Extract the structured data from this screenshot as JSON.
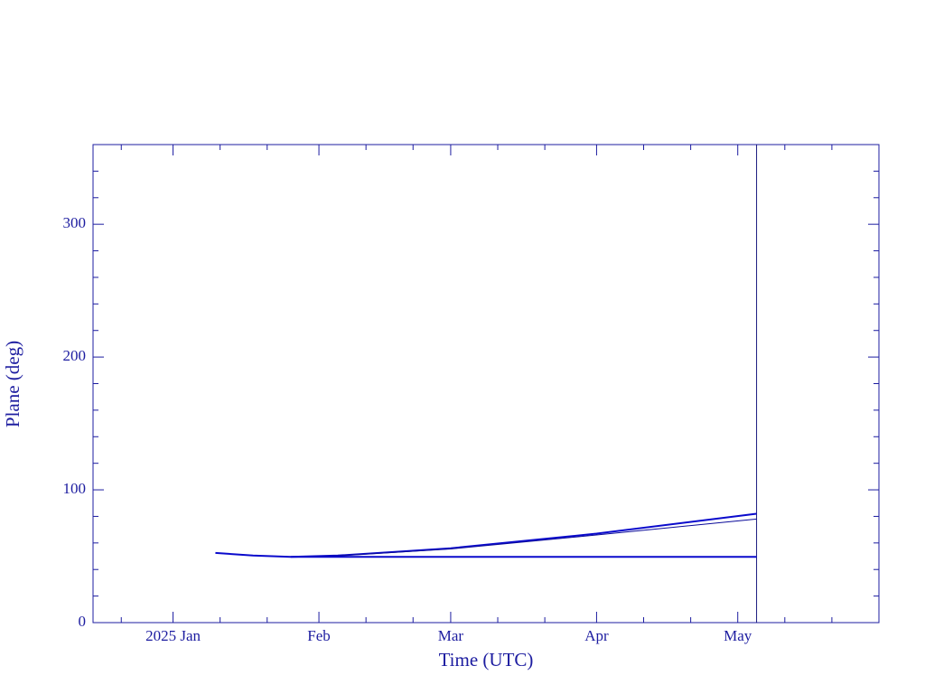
{
  "chart_data": {
    "type": "line",
    "xlabel": "Time (UTC)",
    "ylabel": "Plane (deg)",
    "xlim": [
      "2024-12-15",
      "2025-05-31"
    ],
    "xticks": [
      {
        "value": "2025-01-01",
        "label": "2025 Jan"
      },
      {
        "value": "2025-02-01",
        "label": "Feb"
      },
      {
        "value": "2025-03-01",
        "label": "Mar"
      },
      {
        "value": "2025-04-01",
        "label": "Apr"
      },
      {
        "value": "2025-05-01",
        "label": "May"
      }
    ],
    "xminorticks": [
      "2024-12-21",
      "2025-01-11",
      "2025-01-21",
      "2025-02-11",
      "2025-02-21",
      "2025-03-11",
      "2025-03-21",
      "2025-04-11",
      "2025-04-21",
      "2025-05-11",
      "2025-05-21"
    ],
    "ylim": [
      0,
      360
    ],
    "yticks": [
      0,
      100,
      200,
      300
    ],
    "yminorticks": [
      20,
      40,
      60,
      80,
      120,
      140,
      160,
      180,
      220,
      240,
      260,
      280,
      320,
      340
    ],
    "marker_x": "2025-05-05",
    "axis_color": "#1c1ca0",
    "series": [
      {
        "color": "#0a0acc",
        "width": 2,
        "x": [
          "2025-01-10",
          "2025-01-18",
          "2025-01-26",
          "2025-02-05",
          "2025-03-01",
          "2025-04-01",
          "2025-05-05"
        ],
        "values": [
          52.5,
          50.5,
          49.5,
          50.5,
          56,
          67,
          82
        ]
      },
      {
        "color": "#0a0a99",
        "width": 1,
        "x": [
          "2025-01-26",
          "2025-02-05",
          "2025-03-01",
          "2025-04-01",
          "2025-05-05"
        ],
        "values": [
          49.5,
          50.3,
          55.5,
          66,
          78
        ]
      },
      {
        "color": "#0a0acc",
        "width": 2,
        "x": [
          "2025-01-26",
          "2025-05-05"
        ],
        "values": [
          49.5,
          49.5
        ]
      }
    ]
  }
}
